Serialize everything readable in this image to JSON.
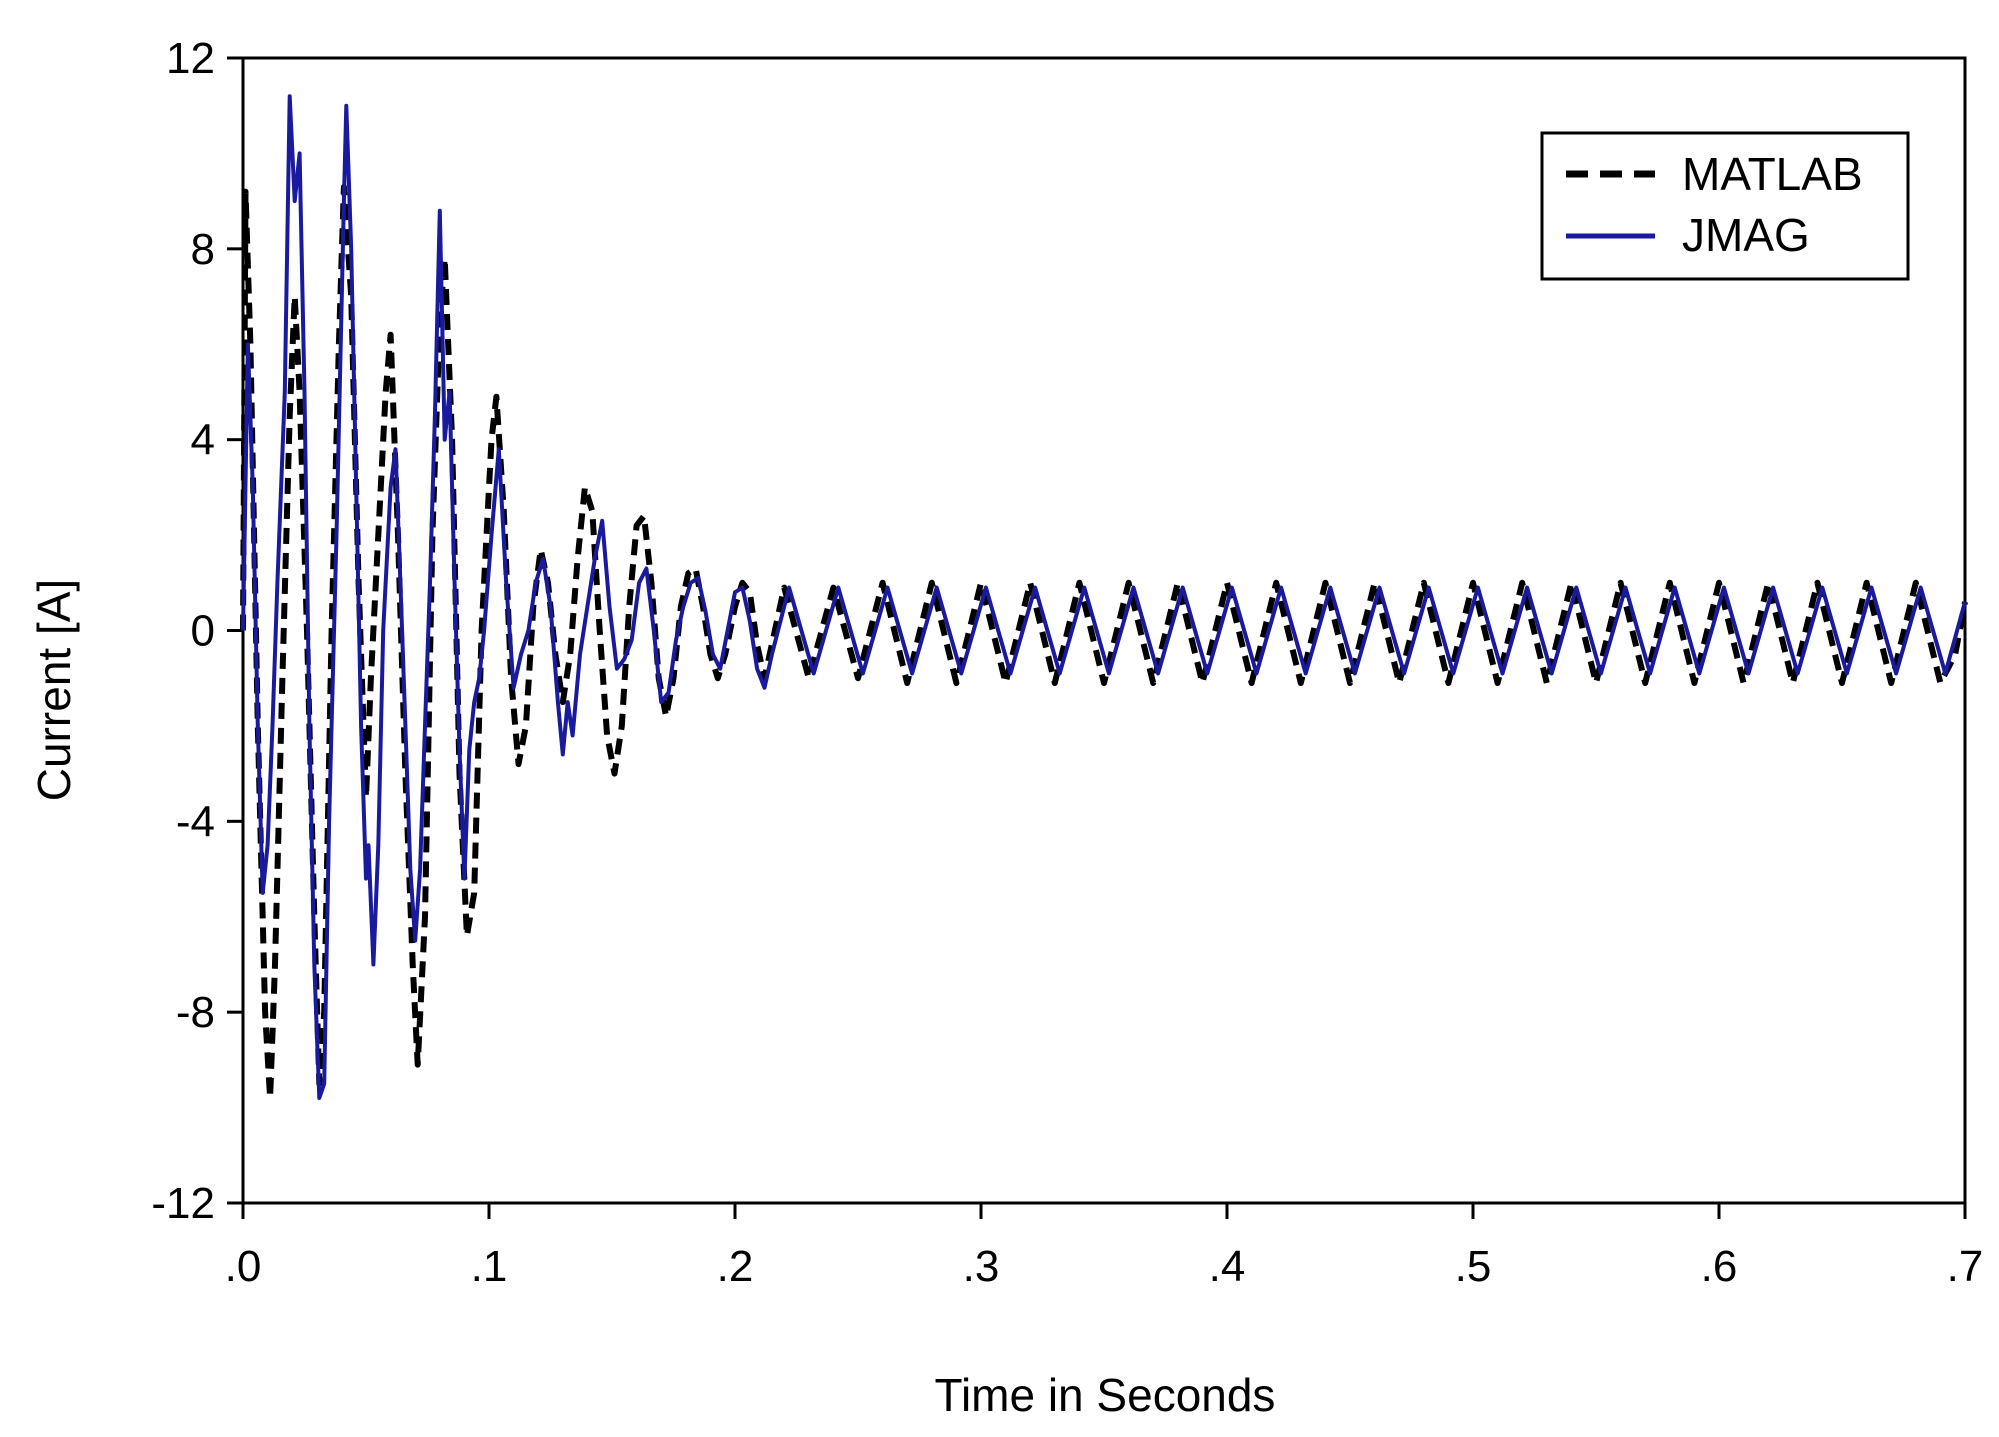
{
  "chart_data": {
    "type": "line",
    "title": "",
    "xlabel": "Time in Seconds",
    "ylabel": "Current [A]",
    "xlim": [
      0,
      0.7
    ],
    "ylim": [
      -12,
      12
    ],
    "x_ticks": [
      0,
      0.1,
      0.2,
      0.3,
      0.4,
      0.5,
      0.6,
      0.7
    ],
    "x_tick_labels": [
      ".0",
      ".1",
      ".2",
      ".3",
      ".4",
      ".5",
      ".6",
      ".7"
    ],
    "y_ticks": [
      -12,
      -8,
      -4,
      0,
      4,
      8,
      12
    ],
    "y_tick_labels": [
      "-12",
      "-8",
      "-4",
      "0",
      "4",
      "8",
      "12"
    ],
    "grid": false,
    "legend_position": "top-right",
    "series": [
      {
        "name": "MATLAB",
        "color": "#000000",
        "style": "dashed",
        "points": [
          [
            0.0,
            0.0
          ],
          [
            0.001,
            9.2
          ],
          [
            0.003,
            6.0
          ],
          [
            0.006,
            -2.0
          ],
          [
            0.009,
            -8.0
          ],
          [
            0.011,
            -9.8
          ],
          [
            0.013,
            -7.0
          ],
          [
            0.016,
            -1.0
          ],
          [
            0.019,
            4.5
          ],
          [
            0.021,
            7.0
          ],
          [
            0.023,
            5.0
          ],
          [
            0.026,
            0.0
          ],
          [
            0.029,
            -6.0
          ],
          [
            0.031,
            -9.5
          ],
          [
            0.033,
            -8.0
          ],
          [
            0.036,
            0.0
          ],
          [
            0.039,
            6.0
          ],
          [
            0.041,
            9.3
          ],
          [
            0.044,
            7.0
          ],
          [
            0.047,
            1.0
          ],
          [
            0.05,
            -3.5
          ],
          [
            0.052,
            -1.0
          ],
          [
            0.055,
            2.0
          ],
          [
            0.058,
            5.0
          ],
          [
            0.06,
            6.2
          ],
          [
            0.063,
            2.0
          ],
          [
            0.066,
            -3.0
          ],
          [
            0.069,
            -7.0
          ],
          [
            0.071,
            -9.1
          ],
          [
            0.074,
            -6.0
          ],
          [
            0.077,
            2.0
          ],
          [
            0.08,
            6.5
          ],
          [
            0.082,
            7.8
          ],
          [
            0.085,
            4.0
          ],
          [
            0.088,
            -3.0
          ],
          [
            0.091,
            -6.4
          ],
          [
            0.094,
            -5.5
          ],
          [
            0.097,
            0.0
          ],
          [
            0.101,
            4.0
          ],
          [
            0.103,
            4.9
          ],
          [
            0.106,
            2.5
          ],
          [
            0.109,
            -1.0
          ],
          [
            0.112,
            -2.8
          ],
          [
            0.115,
            -2.0
          ],
          [
            0.118,
            0.5
          ],
          [
            0.121,
            1.7
          ],
          [
            0.124,
            1.0
          ],
          [
            0.127,
            -0.5
          ],
          [
            0.13,
            -1.5
          ],
          [
            0.133,
            -0.5
          ],
          [
            0.136,
            1.5
          ],
          [
            0.139,
            3.0
          ],
          [
            0.142,
            2.5
          ],
          [
            0.145,
            0.0
          ],
          [
            0.148,
            -2.2
          ],
          [
            0.151,
            -3.0
          ],
          [
            0.154,
            -2.0
          ],
          [
            0.157,
            0.5
          ],
          [
            0.16,
            2.2
          ],
          [
            0.163,
            2.4
          ],
          [
            0.166,
            1.0
          ],
          [
            0.169,
            -1.0
          ],
          [
            0.172,
            -1.8
          ],
          [
            0.175,
            -1.0
          ],
          [
            0.178,
            0.5
          ],
          [
            0.181,
            1.2
          ],
          [
            0.184,
            1.3
          ],
          [
            0.187,
            0.5
          ],
          [
            0.19,
            -0.5
          ],
          [
            0.193,
            -1.0
          ],
          [
            0.196,
            -0.5
          ],
          [
            0.2,
            0.5
          ],
          [
            0.203,
            1.0
          ],
          [
            0.206,
            0.8
          ],
          [
            0.209,
            -0.3
          ],
          [
            0.212,
            -1.0
          ],
          [
            0.22,
            0.9
          ],
          [
            0.23,
            -1.0
          ],
          [
            0.24,
            0.9
          ],
          [
            0.25,
            -1.0
          ],
          [
            0.26,
            1.0
          ],
          [
            0.27,
            -1.1
          ],
          [
            0.28,
            1.0
          ],
          [
            0.29,
            -1.1
          ],
          [
            0.3,
            1.0
          ],
          [
            0.31,
            -1.1
          ],
          [
            0.32,
            1.0
          ],
          [
            0.33,
            -1.1
          ],
          [
            0.34,
            1.0
          ],
          [
            0.35,
            -1.1
          ],
          [
            0.36,
            1.0
          ],
          [
            0.37,
            -1.1
          ],
          [
            0.38,
            1.0
          ],
          [
            0.39,
            -1.1
          ],
          [
            0.4,
            1.0
          ],
          [
            0.41,
            -1.1
          ],
          [
            0.42,
            1.0
          ],
          [
            0.43,
            -1.1
          ],
          [
            0.44,
            1.0
          ],
          [
            0.45,
            -1.1
          ],
          [
            0.46,
            1.0
          ],
          [
            0.47,
            -1.1
          ],
          [
            0.48,
            1.0
          ],
          [
            0.49,
            -1.1
          ],
          [
            0.5,
            1.0
          ],
          [
            0.51,
            -1.1
          ],
          [
            0.52,
            1.0
          ],
          [
            0.53,
            -1.1
          ],
          [
            0.54,
            1.0
          ],
          [
            0.55,
            -1.1
          ],
          [
            0.56,
            1.0
          ],
          [
            0.57,
            -1.1
          ],
          [
            0.58,
            1.0
          ],
          [
            0.59,
            -1.1
          ],
          [
            0.6,
            1.0
          ],
          [
            0.61,
            -1.1
          ],
          [
            0.62,
            1.0
          ],
          [
            0.63,
            -1.1
          ],
          [
            0.64,
            1.0
          ],
          [
            0.65,
            -1.1
          ],
          [
            0.66,
            1.0
          ],
          [
            0.67,
            -1.1
          ],
          [
            0.68,
            1.0
          ],
          [
            0.69,
            -1.1
          ],
          [
            0.696,
            -0.5
          ],
          [
            0.7,
            0.6
          ]
        ]
      },
      {
        "name": "JMAG",
        "color": "#1a1a9e",
        "style": "solid",
        "points": [
          [
            0.0,
            0.0
          ],
          [
            0.002,
            6.0
          ],
          [
            0.004,
            3.0
          ],
          [
            0.006,
            -2.0
          ],
          [
            0.008,
            -5.5
          ],
          [
            0.01,
            -4.5
          ],
          [
            0.012,
            -2.0
          ],
          [
            0.014,
            1.0
          ],
          [
            0.017,
            5.0
          ],
          [
            0.019,
            11.2
          ],
          [
            0.021,
            9.0
          ],
          [
            0.023,
            10.0
          ],
          [
            0.025,
            5.0
          ],
          [
            0.027,
            -2.0
          ],
          [
            0.029,
            -7.0
          ],
          [
            0.031,
            -9.8
          ],
          [
            0.033,
            -9.5
          ],
          [
            0.035,
            -4.0
          ],
          [
            0.038,
            2.0
          ],
          [
            0.041,
            9.0
          ],
          [
            0.042,
            11.0
          ],
          [
            0.044,
            8.0
          ],
          [
            0.046,
            3.0
          ],
          [
            0.048,
            -2.0
          ],
          [
            0.05,
            -5.2
          ],
          [
            0.051,
            -4.5
          ],
          [
            0.053,
            -7.0
          ],
          [
            0.055,
            -4.5
          ],
          [
            0.057,
            0.0
          ],
          [
            0.06,
            3.0
          ],
          [
            0.062,
            3.8
          ],
          [
            0.064,
            1.0
          ],
          [
            0.066,
            -2.0
          ],
          [
            0.068,
            -5.0
          ],
          [
            0.07,
            -6.5
          ],
          [
            0.072,
            -5.0
          ],
          [
            0.074,
            -2.0
          ],
          [
            0.076,
            1.0
          ],
          [
            0.078,
            4.5
          ],
          [
            0.08,
            8.8
          ],
          [
            0.082,
            4.0
          ],
          [
            0.084,
            5.0
          ],
          [
            0.086,
            1.0
          ],
          [
            0.088,
            -2.5
          ],
          [
            0.09,
            -5.2
          ],
          [
            0.092,
            -2.5
          ],
          [
            0.094,
            -1.5
          ],
          [
            0.096,
            -1.0
          ],
          [
            0.098,
            0.0
          ],
          [
            0.101,
            2.0
          ],
          [
            0.104,
            3.8
          ],
          [
            0.107,
            1.0
          ],
          [
            0.11,
            -1.2
          ],
          [
            0.113,
            -0.5
          ],
          [
            0.116,
            0.0
          ],
          [
            0.119,
            1.0
          ],
          [
            0.122,
            1.5
          ],
          [
            0.125,
            0.5
          ],
          [
            0.128,
            -1.5
          ],
          [
            0.13,
            -2.6
          ],
          [
            0.132,
            -1.5
          ],
          [
            0.134,
            -2.2
          ],
          [
            0.137,
            -0.5
          ],
          [
            0.14,
            0.5
          ],
          [
            0.143,
            1.5
          ],
          [
            0.146,
            2.3
          ],
          [
            0.149,
            0.5
          ],
          [
            0.152,
            -0.8
          ],
          [
            0.155,
            -0.6
          ],
          [
            0.158,
            -0.2
          ],
          [
            0.161,
            1.0
          ],
          [
            0.164,
            1.3
          ],
          [
            0.167,
            0.0
          ],
          [
            0.17,
            -1.5
          ],
          [
            0.173,
            -1.3
          ],
          [
            0.176,
            -0.2
          ],
          [
            0.179,
            0.5
          ],
          [
            0.182,
            1.0
          ],
          [
            0.185,
            1.1
          ],
          [
            0.188,
            0.4
          ],
          [
            0.191,
            -0.5
          ],
          [
            0.194,
            -0.8
          ],
          [
            0.197,
            0.0
          ],
          [
            0.2,
            0.8
          ],
          [
            0.203,
            0.9
          ],
          [
            0.206,
            0.2
          ],
          [
            0.209,
            -0.8
          ],
          [
            0.212,
            -1.2
          ],
          [
            0.215,
            -0.5
          ],
          [
            0.222,
            0.9
          ],
          [
            0.232,
            -0.9
          ],
          [
            0.242,
            0.9
          ],
          [
            0.252,
            -0.9
          ],
          [
            0.262,
            0.9
          ],
          [
            0.272,
            -0.9
          ],
          [
            0.282,
            0.9
          ],
          [
            0.292,
            -0.9
          ],
          [
            0.302,
            0.9
          ],
          [
            0.312,
            -0.9
          ],
          [
            0.322,
            0.9
          ],
          [
            0.332,
            -0.9
          ],
          [
            0.342,
            0.9
          ],
          [
            0.352,
            -0.9
          ],
          [
            0.362,
            0.9
          ],
          [
            0.372,
            -0.9
          ],
          [
            0.382,
            0.9
          ],
          [
            0.392,
            -0.9
          ],
          [
            0.402,
            0.9
          ],
          [
            0.412,
            -0.9
          ],
          [
            0.422,
            0.9
          ],
          [
            0.432,
            -0.9
          ],
          [
            0.442,
            0.9
          ],
          [
            0.452,
            -0.9
          ],
          [
            0.462,
            0.9
          ],
          [
            0.472,
            -0.9
          ],
          [
            0.482,
            0.9
          ],
          [
            0.492,
            -0.9
          ],
          [
            0.502,
            0.9
          ],
          [
            0.512,
            -0.9
          ],
          [
            0.522,
            0.9
          ],
          [
            0.532,
            -0.9
          ],
          [
            0.542,
            0.9
          ],
          [
            0.552,
            -0.9
          ],
          [
            0.562,
            0.9
          ],
          [
            0.572,
            -0.9
          ],
          [
            0.582,
            0.9
          ],
          [
            0.592,
            -0.9
          ],
          [
            0.602,
            0.9
          ],
          [
            0.612,
            -0.9
          ],
          [
            0.622,
            0.9
          ],
          [
            0.632,
            -0.9
          ],
          [
            0.642,
            0.9
          ],
          [
            0.652,
            -0.9
          ],
          [
            0.662,
            0.9
          ],
          [
            0.672,
            -0.9
          ],
          [
            0.682,
            0.9
          ],
          [
            0.692,
            -0.9
          ],
          [
            0.7,
            0.6
          ]
        ]
      }
    ]
  }
}
